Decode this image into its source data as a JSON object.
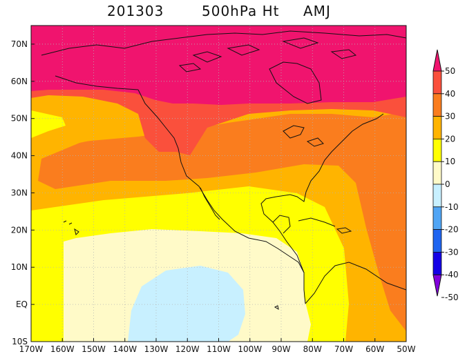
{
  "title": {
    "date": "201303",
    "field": "500hPa Ht",
    "source": "AMJ"
  },
  "map": {
    "extent": {
      "lon": [
        -170,
        -50
      ],
      "lat": [
        -10,
        75
      ]
    },
    "x_ticks": [
      "170W",
      "160W",
      "150W",
      "140W",
      "130W",
      "120W",
      "110W",
      "100W",
      "90W",
      "80W",
      "70W",
      "60W",
      "50W"
    ],
    "y_ticks": [
      "10S",
      "EQ",
      "10N",
      "20N",
      "30N",
      "40N",
      "50N",
      "60N",
      "70N"
    ],
    "y_tick_values": [
      -10,
      0,
      10,
      20,
      30,
      40,
      50,
      60,
      70
    ],
    "x_tick_values": [
      -170,
      -160,
      -150,
      -140,
      -130,
      -120,
      -110,
      -100,
      -90,
      -80,
      -70,
      -60,
      -50
    ],
    "gridlines": true
  },
  "colorbar": {
    "labels": [
      "50",
      "40",
      "30",
      "20",
      "10",
      "0",
      "-10",
      "-20",
      "-30",
      "-40",
      "-50"
    ],
    "colors": [
      "#f0146e",
      "#fa503c",
      "#fa7d1e",
      "#ffb400",
      "#ffff00",
      "#fffac8",
      "#c8f0ff",
      "#50a5f5",
      "#1e64f0",
      "#1400e6",
      "#8200dc"
    ],
    "top_triangle_color": "#f0146e",
    "bottom_triangle_color": "#8200dc"
  },
  "chart_data": {
    "type": "heatmap",
    "title": "201303 500hPa Ht AMJ",
    "levels": [
      -50,
      -40,
      -30,
      -20,
      -10,
      0,
      10,
      20,
      30,
      40,
      50
    ],
    "xlabel": "",
    "ylabel": "",
    "xlim": [
      -170,
      -50
    ],
    "ylim": [
      -10,
      75
    ]
  }
}
